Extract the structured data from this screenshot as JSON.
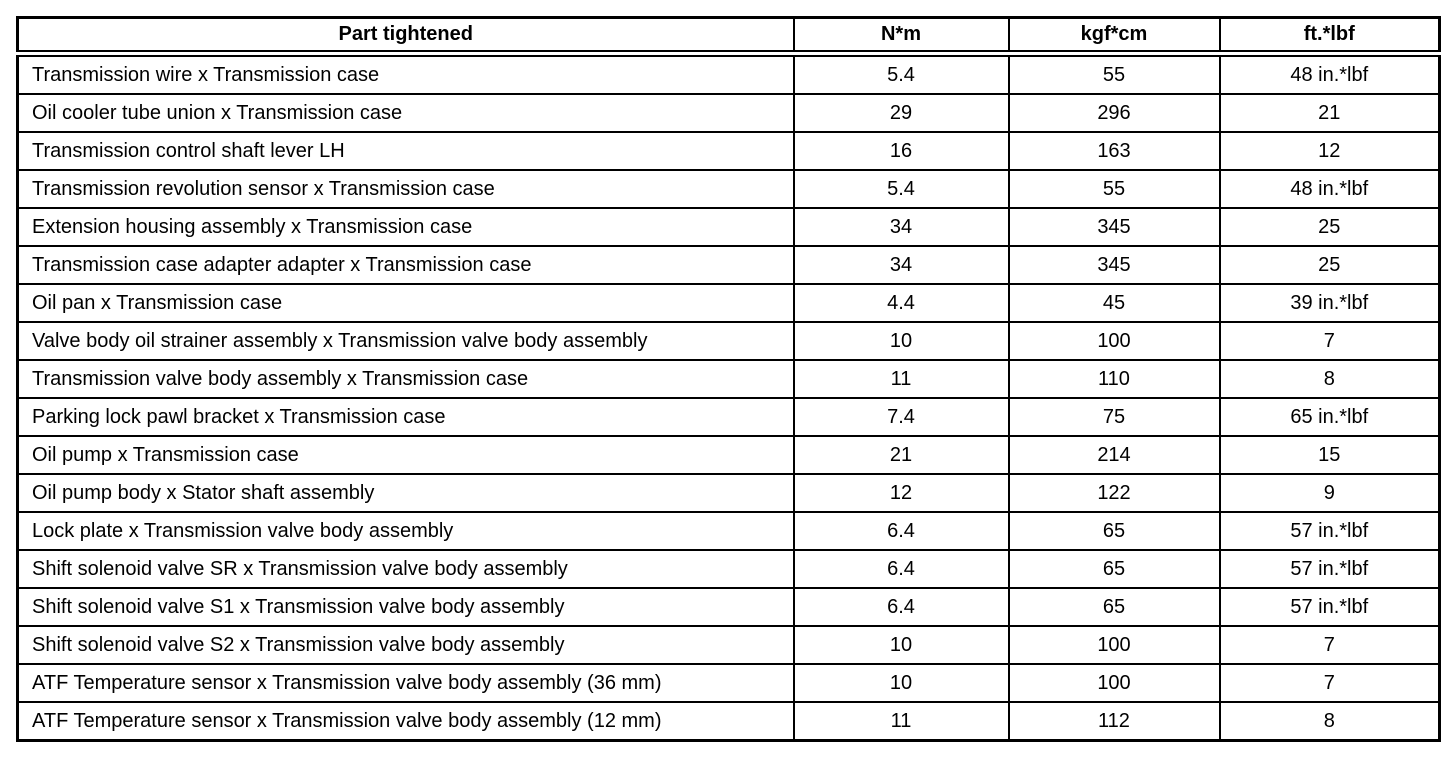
{
  "colors": {
    "background": "#ffffff",
    "border": "#000000",
    "text": "#000000"
  },
  "table": {
    "headers": {
      "part": "Part tightened",
      "nm": "N*m",
      "kgfcm": "kgf*cm",
      "ftlbf": "ft.*lbf"
    },
    "rows": [
      {
        "part": "Transmission wire x Transmission case",
        "nm": "5.4",
        "kgfcm": "55",
        "ftlbf": "48 in.*lbf"
      },
      {
        "part": "Oil cooler tube union x Transmission case",
        "nm": "29",
        "kgfcm": "296",
        "ftlbf": "21"
      },
      {
        "part": "Transmission control shaft lever LH",
        "nm": "16",
        "kgfcm": "163",
        "ftlbf": "12"
      },
      {
        "part": "Transmission revolution sensor x Transmission case",
        "nm": "5.4",
        "kgfcm": "55",
        "ftlbf": "48 in.*lbf"
      },
      {
        "part": "Extension housing assembly x Transmission case",
        "nm": "34",
        "kgfcm": "345",
        "ftlbf": "25"
      },
      {
        "part": "Transmission case adapter adapter x Transmission case",
        "nm": "34",
        "kgfcm": "345",
        "ftlbf": "25"
      },
      {
        "part": "Oil pan x Transmission case",
        "nm": "4.4",
        "kgfcm": "45",
        "ftlbf": "39 in.*lbf"
      },
      {
        "part": "Valve body oil strainer assembly x Transmission valve body assembly",
        "nm": "10",
        "kgfcm": "100",
        "ftlbf": "7"
      },
      {
        "part": "Transmission valve body assembly x Transmission case",
        "nm": "11",
        "kgfcm": "110",
        "ftlbf": "8"
      },
      {
        "part": "Parking lock pawl bracket x Transmission case",
        "nm": "7.4",
        "kgfcm": "75",
        "ftlbf": "65 in.*lbf"
      },
      {
        "part": "Oil pump x Transmission case",
        "nm": "21",
        "kgfcm": "214",
        "ftlbf": "15"
      },
      {
        "part": "Oil pump body x Stator shaft assembly",
        "nm": "12",
        "kgfcm": "122",
        "ftlbf": "9"
      },
      {
        "part": "Lock plate x Transmission valve body assembly",
        "nm": "6.4",
        "kgfcm": "65",
        "ftlbf": "57 in.*lbf"
      },
      {
        "part": "Shift solenoid valve SR x Transmission valve body assembly",
        "nm": "6.4",
        "kgfcm": "65",
        "ftlbf": "57 in.*lbf"
      },
      {
        "part": "Shift solenoid valve S1 x Transmission valve body assembly",
        "nm": "6.4",
        "kgfcm": "65",
        "ftlbf": "57 in.*lbf"
      },
      {
        "part": "Shift solenoid valve S2 x Transmission valve body assembly",
        "nm": "10",
        "kgfcm": "100",
        "ftlbf": "7"
      },
      {
        "part": "ATF Temperature sensor x Transmission valve body assembly (36 mm)",
        "nm": "10",
        "kgfcm": "100",
        "ftlbf": "7"
      },
      {
        "part": "ATF Temperature sensor x Transmission valve body assembly (12 mm)",
        "nm": "11",
        "kgfcm": "112",
        "ftlbf": "8"
      }
    ]
  }
}
